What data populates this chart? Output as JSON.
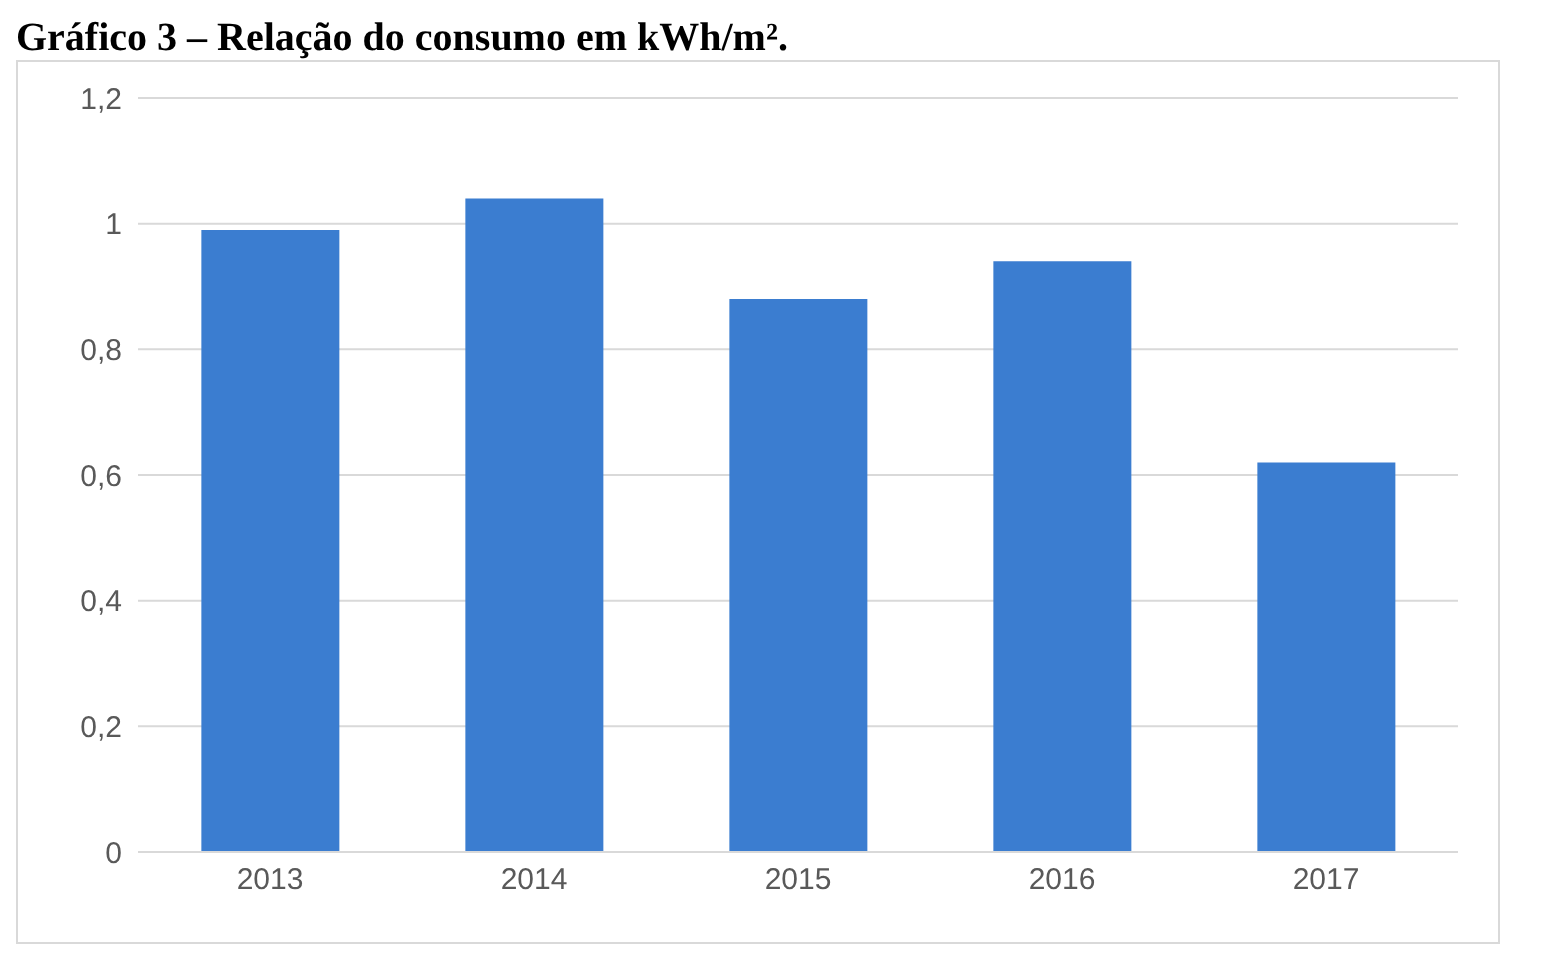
{
  "chart_data": {
    "type": "bar",
    "title": "Gráfico 3 – Relação do consumo em kWh/m².",
    "categories": [
      "2013",
      "2014",
      "2015",
      "2016",
      "2017"
    ],
    "values": [
      0.99,
      1.04,
      0.88,
      0.94,
      0.62
    ],
    "color": "#3b7dd0",
    "ylim": [
      0,
      1.2
    ],
    "yticks": [
      0,
      {
        "value": 0.2,
        "label": "0,2"
      },
      {
        "value": 0.4,
        "label": "0,4"
      },
      {
        "value": 0.6,
        "label": "0,6"
      },
      {
        "value": 0.8,
        "label": "0,8"
      },
      1,
      {
        "value": 1.2,
        "label": "1,2"
      }
    ],
    "grid": "y"
  }
}
